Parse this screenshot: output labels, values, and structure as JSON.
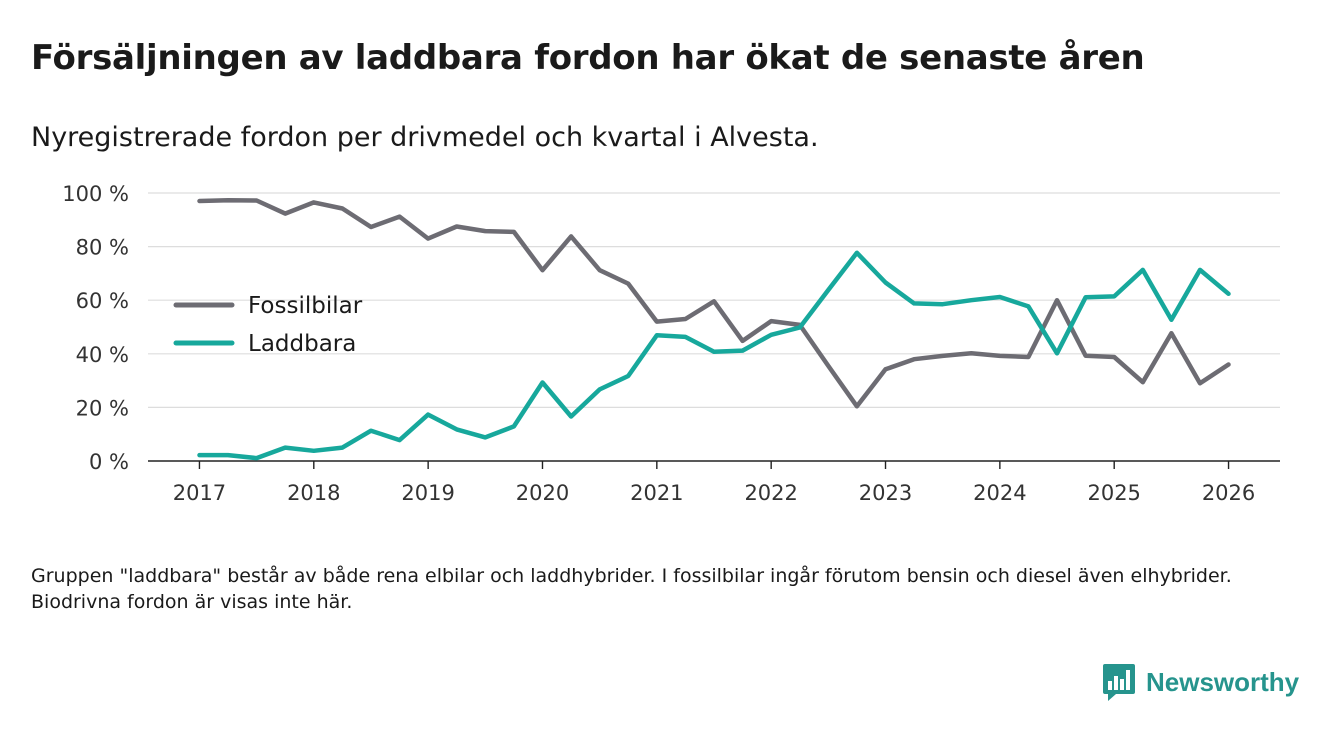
{
  "title": "Försäljningen av laddbara fordon har ökat de senaste åren",
  "subtitle": "Nyregistrerade fordon per drivmedel och kvartal i Alvesta.",
  "footnote": "Gruppen \"laddbara\" består av både rena elbilar och laddhybrider. I fossilbilar ingår förutom bensin och diesel även elhybrider. Biodrivna fordon är visas inte här.",
  "brand": {
    "name": "Newsworthy",
    "icon": "bar-chart-speech-bubble-icon",
    "color": "#26948d"
  },
  "chart_data": {
    "type": "line",
    "title": "",
    "xlabel": "",
    "ylabel": "",
    "xlim": [
      2016.55,
      2026.45
    ],
    "ylim": [
      0,
      100
    ],
    "grid": true,
    "legend_position": "middle-left",
    "y_ticks": [
      0,
      20,
      40,
      60,
      80,
      100
    ],
    "y_tick_labels": [
      "0 %",
      "20 %",
      "40 %",
      "60 %",
      "80 %",
      "100 %"
    ],
    "x_ticks": [
      2017,
      2018,
      2019,
      2020,
      2021,
      2022,
      2023,
      2024,
      2025,
      2026
    ],
    "x_tick_labels": [
      "2017",
      "2018",
      "2019",
      "2020",
      "2021",
      "2022",
      "2023",
      "2024",
      "2025",
      "2026"
    ],
    "x": [
      2017,
      2017.25,
      2017.5,
      2017.75,
      2018,
      2018.25,
      2018.5,
      2018.75,
      2019,
      2019.25,
      2019.5,
      2019.75,
      2020,
      2020.25,
      2020.5,
      2020.75,
      2021,
      2021.25,
      2021.5,
      2021.75,
      2022,
      2022.25,
      2022.5,
      2022.75,
      2023,
      2023.25,
      2023.5,
      2023.75,
      2024,
      2024.25,
      2024.5,
      2024.75,
      2025,
      2025.25,
      2025.5,
      2025.75,
      2026
    ],
    "series": [
      {
        "name": "Fossilbilar",
        "color": "#6d6c73",
        "values": [
          97,
          97.3,
          97.2,
          92.3,
          96.5,
          94.2,
          87.3,
          91.2,
          83,
          87.5,
          85.8,
          85.5,
          71.2,
          83.8,
          71.2,
          66.2,
          52,
          53,
          59.6,
          44.8,
          52.2,
          50.8,
          35.5,
          20.4,
          34.2,
          38,
          39.2,
          40.2,
          39.2,
          38.8,
          60,
          39.3,
          38.8,
          29.4,
          47.7,
          29,
          36
        ]
      },
      {
        "name": "Laddbara",
        "color": "#17a89c",
        "values": [
          2.2,
          2.2,
          1.1,
          5,
          3.8,
          5,
          11.3,
          7.8,
          17.3,
          11.8,
          8.8,
          12.9,
          29.3,
          16.6,
          26.7,
          31.7,
          46.9,
          46.3,
          40.8,
          41.2,
          47.1,
          49.8,
          63.8,
          77.7,
          66.6,
          58.8,
          58.5,
          60,
          61.2,
          57.7,
          40.2,
          61.1,
          61.4,
          71.3,
          52.7,
          71.3,
          62.4
        ]
      }
    ]
  }
}
